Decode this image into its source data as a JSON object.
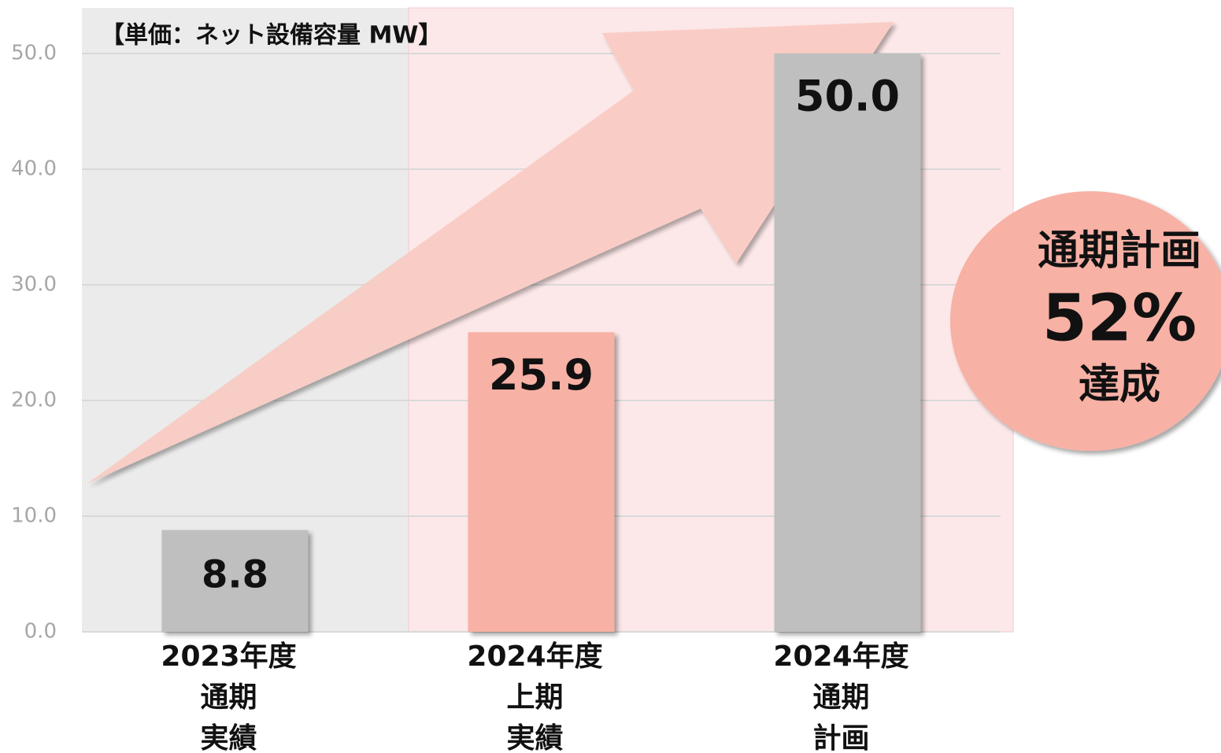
{
  "chart_data": {
    "type": "bar",
    "title": "【単価：ネット設備容量 MW】",
    "categories": [
      [
        "2023年度",
        "通期",
        "実績"
      ],
      [
        "2024年度",
        "上期",
        "実績"
      ],
      [
        "2024年度",
        "通期",
        "計画"
      ]
    ],
    "values": [
      8.8,
      25.9,
      50.0
    ],
    "value_labels": [
      "8.8",
      "25.9",
      "50.0"
    ],
    "colors": [
      "#bfbfbf",
      "#f8b1a5",
      "#bfbfbf"
    ],
    "ylim": [
      0,
      50
    ],
    "yticks": [
      {
        "value": 0,
        "label": "0.0"
      },
      {
        "value": 10,
        "label": "10.0"
      },
      {
        "value": 20,
        "label": "20.0"
      },
      {
        "value": 30,
        "label": "30.0"
      },
      {
        "value": 40,
        "label": "40.0"
      },
      {
        "value": 50,
        "label": "50.0"
      }
    ],
    "grid": true,
    "annotation": [
      "通期計画",
      "52%",
      "達成"
    ]
  }
}
